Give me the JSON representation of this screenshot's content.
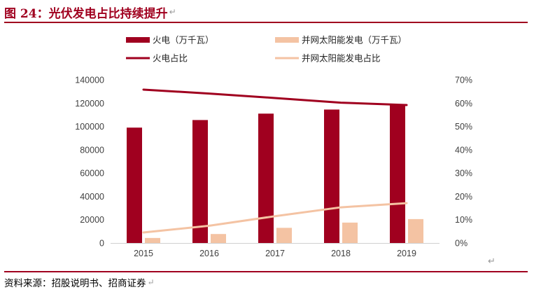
{
  "header": {
    "figure_title": "图 24：光伏发电占比持续提升"
  },
  "footer": {
    "source": "资料来源：招股说明书、招商证券"
  },
  "glyphs": {
    "return_mark": "↵"
  },
  "colors": {
    "thermal": "#a0001f",
    "solar": "#f4c3a3",
    "accent_rule": "#a0001f",
    "axis_text": "#404040"
  },
  "chart_data": {
    "type": "bar",
    "title": "",
    "categories": [
      "2015",
      "2016",
      "2017",
      "2018",
      "2019"
    ],
    "series": [
      {
        "name": "火电（万千瓦）",
        "type": "bar",
        "axis": "left",
        "values": [
          99000,
          105500,
          111000,
          114500,
          119000
        ]
      },
      {
        "name": "并网太阳能发电（万千瓦）",
        "type": "bar",
        "axis": "left",
        "values": [
          4300,
          7700,
          13000,
          17500,
          20500
        ]
      },
      {
        "name": "火电占比",
        "type": "line",
        "axis": "right",
        "values": [
          65.8,
          64.1,
          62.2,
          60.2,
          59.2
        ]
      },
      {
        "name": "并网太阳能发电占比",
        "type": "line",
        "axis": "right",
        "values": [
          4.5,
          7.4,
          11.5,
          15.3,
          17.1
        ]
      }
    ],
    "y_left": {
      "min": 0,
      "max": 140000,
      "ticks": [
        "0",
        "20000",
        "40000",
        "60000",
        "80000",
        "100000",
        "120000",
        "140000"
      ]
    },
    "y_right": {
      "min": 0,
      "max": 70,
      "ticks": [
        "0%",
        "10%",
        "20%",
        "30%",
        "40%",
        "50%",
        "60%",
        "70%"
      ]
    },
    "grid": false,
    "legend_position": "top"
  }
}
